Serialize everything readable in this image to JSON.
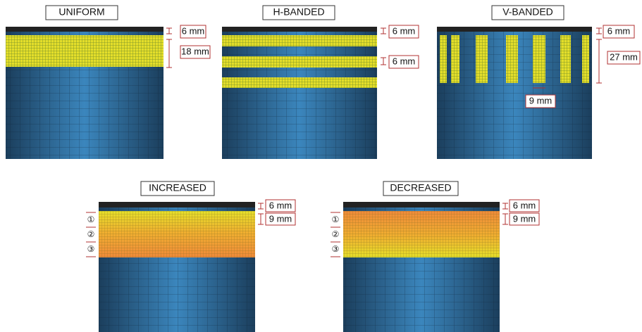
{
  "panels": [
    {
      "title": "UNIFORM",
      "annotations": [
        "6 mm",
        "18 mm"
      ]
    },
    {
      "title": "H-BANDED",
      "annotations": [
        "6 mm",
        "6 mm"
      ]
    },
    {
      "title": "V-BANDED",
      "annotations": [
        "6 mm",
        "27 mm",
        "9 mm"
      ]
    },
    {
      "title": "INCREASED",
      "annotations": [
        "6 mm",
        "9 mm"
      ],
      "markers": [
        "①",
        "②",
        "③"
      ]
    },
    {
      "title": "DECREASED",
      "annotations": [
        "6 mm",
        "9 mm"
      ],
      "markers": [
        "①",
        "②",
        "③"
      ]
    }
  ]
}
